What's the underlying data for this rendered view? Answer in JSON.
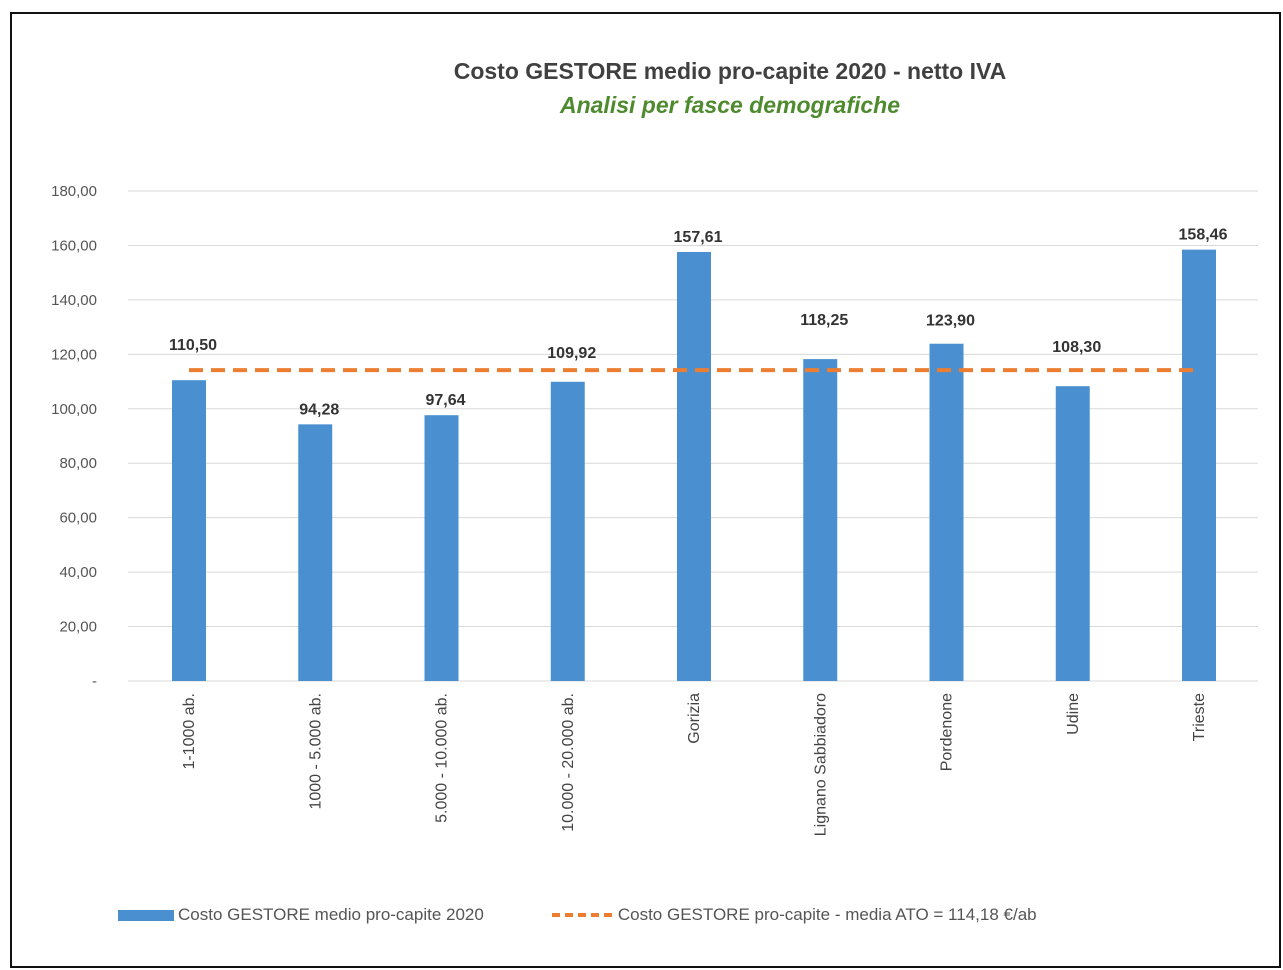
{
  "chart_data": {
    "type": "bar",
    "title": "Costo GESTORE medio pro-capite 2020 - netto IVA",
    "subtitle": "Analisi per fasce demografiche",
    "categories": [
      "1-1000 ab.",
      "1000 - 5.000 ab.",
      "5.000 - 10.000 ab.",
      "10.000 - 20.000 ab.",
      "Gorizia",
      "Lignano Sabbiadoro",
      "Pordenone",
      "Udine",
      "Trieste"
    ],
    "series": [
      {
        "name": "Costo GESTORE medio pro-capite 2020",
        "values": [
          110.5,
          94.28,
          97.64,
          109.92,
          157.61,
          118.25,
          123.9,
          108.3,
          158.46
        ],
        "data_labels": [
          "110,50",
          "94,28",
          "97,64",
          "109,92",
          "157,61",
          "118,25",
          "123,90",
          "108,30",
          "158,46"
        ],
        "color": "#4a90d0"
      },
      {
        "name": "Costo GESTORE pro-capite - media ATO = 114,18 €/ab",
        "type": "line",
        "value": 114.18,
        "style": "dashed",
        "color": "#ed7d31"
      }
    ],
    "ylim": [
      0,
      180
    ],
    "yticks": [
      {
        "value": 0,
        "label": "-"
      },
      {
        "value": 20,
        "label": "20,00"
      },
      {
        "value": 40,
        "label": "40,00"
      },
      {
        "value": 60,
        "label": "60,00"
      },
      {
        "value": 80,
        "label": "80,00"
      },
      {
        "value": 100,
        "label": "100,00"
      },
      {
        "value": 120,
        "label": "120,00"
      },
      {
        "value": 140,
        "label": "140,00"
      },
      {
        "value": 160,
        "label": "160,00"
      },
      {
        "value": 180,
        "label": "180,00"
      }
    ],
    "grid": true,
    "legend_position": "bottom",
    "gridline_color": "#d9d9d9"
  }
}
